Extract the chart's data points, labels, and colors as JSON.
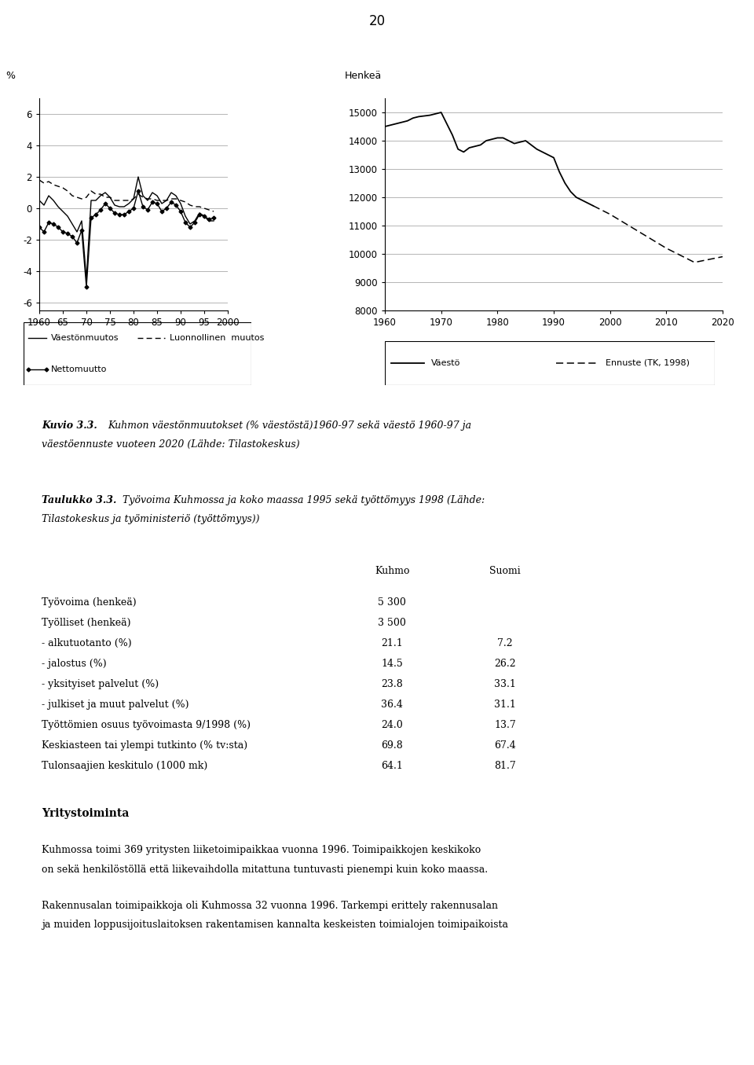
{
  "page_number": "20",
  "left_chart": {
    "ylabel": "%",
    "ylim": [
      -6.5,
      7
    ],
    "yticks": [
      -6,
      -4,
      -2,
      0,
      2,
      4,
      6
    ],
    "xlim": [
      1960,
      2000
    ],
    "xticks": [
      1960,
      1965,
      1970,
      1975,
      1980,
      1985,
      1990,
      1995,
      2000
    ],
    "xticklabels": [
      "1960",
      "65",
      "70",
      "75",
      "80",
      "85",
      "90",
      "95",
      "2000"
    ],
    "vaestonmuutos_x": [
      1960,
      1961,
      1962,
      1963,
      1964,
      1965,
      1966,
      1967,
      1968,
      1969,
      1970,
      1971,
      1972,
      1973,
      1974,
      1975,
      1976,
      1977,
      1978,
      1979,
      1980,
      1981,
      1982,
      1983,
      1984,
      1985,
      1986,
      1987,
      1988,
      1989,
      1990,
      1991,
      1992,
      1993,
      1994,
      1995,
      1996,
      1997
    ],
    "vaestonmuutos_y": [
      0.5,
      0.2,
      0.8,
      0.5,
      0.1,
      -0.2,
      -0.5,
      -1.0,
      -1.5,
      -0.8,
      -4.5,
      0.5,
      0.5,
      0.8,
      1.0,
      0.7,
      0.2,
      0.1,
      0.1,
      0.3,
      0.6,
      2.0,
      0.8,
      0.5,
      1.0,
      0.8,
      0.3,
      0.5,
      1.0,
      0.8,
      0.3,
      -0.5,
      -1.0,
      -0.8,
      -0.3,
      -0.5,
      -0.8,
      -0.8
    ],
    "luonnollinen_x": [
      1960,
      1961,
      1962,
      1963,
      1964,
      1965,
      1966,
      1967,
      1968,
      1969,
      1970,
      1971,
      1972,
      1973,
      1974,
      1975,
      1976,
      1977,
      1978,
      1979,
      1980,
      1981,
      1982,
      1983,
      1984,
      1985,
      1986,
      1987,
      1988,
      1989,
      1990,
      1991,
      1992,
      1993,
      1994,
      1995,
      1996,
      1997
    ],
    "luonnollinen_y": [
      1.8,
      1.6,
      1.7,
      1.5,
      1.4,
      1.3,
      1.1,
      0.8,
      0.7,
      0.6,
      0.7,
      1.1,
      0.9,
      0.9,
      0.7,
      0.7,
      0.5,
      0.5,
      0.5,
      0.5,
      0.6,
      0.9,
      0.7,
      0.6,
      0.6,
      0.5,
      0.5,
      0.5,
      0.6,
      0.6,
      0.5,
      0.4,
      0.2,
      0.1,
      0.1,
      0.0,
      -0.1,
      -0.2
    ],
    "nettomuutto_x": [
      1960,
      1961,
      1962,
      1963,
      1964,
      1965,
      1966,
      1967,
      1968,
      1969,
      1970,
      1971,
      1972,
      1973,
      1974,
      1975,
      1976,
      1977,
      1978,
      1979,
      1980,
      1981,
      1982,
      1983,
      1984,
      1985,
      1986,
      1987,
      1988,
      1989,
      1990,
      1991,
      1992,
      1993,
      1994,
      1995,
      1996,
      1997
    ],
    "nettomuutto_y": [
      -1.2,
      -1.5,
      -0.9,
      -1.0,
      -1.2,
      -1.5,
      -1.6,
      -1.8,
      -2.2,
      -1.4,
      -5.0,
      -0.6,
      -0.4,
      -0.1,
      0.3,
      0.0,
      -0.3,
      -0.4,
      -0.4,
      -0.2,
      0.0,
      1.1,
      0.1,
      -0.1,
      0.4,
      0.3,
      -0.2,
      0.0,
      0.4,
      0.2,
      -0.2,
      -0.9,
      -1.2,
      -0.9,
      -0.4,
      -0.5,
      -0.7,
      -0.6
    ],
    "legend_vaestonmuutos": "Väestönmuutos",
    "legend_luonnollinen": "Luonnollinen  muutos",
    "legend_netto": "Nettomuutto"
  },
  "right_chart": {
    "ylabel": "Henkeä",
    "ylim": [
      8000,
      15500
    ],
    "yticks": [
      8000,
      9000,
      10000,
      11000,
      12000,
      13000,
      14000,
      15000
    ],
    "xlim": [
      1960,
      2020
    ],
    "xticks": [
      1960,
      1970,
      1980,
      1990,
      2000,
      2010,
      2020
    ],
    "vaesto_x": [
      1960,
      1962,
      1964,
      1965,
      1966,
      1968,
      1970,
      1972,
      1973,
      1974,
      1975,
      1976,
      1977,
      1978,
      1979,
      1980,
      1981,
      1982,
      1983,
      1984,
      1985,
      1986,
      1987,
      1988,
      1989,
      1990,
      1991,
      1992,
      1993,
      1994,
      1995,
      1996,
      1997
    ],
    "vaesto_y": [
      14500,
      14600,
      14700,
      14800,
      14850,
      14900,
      15000,
      14200,
      13700,
      13600,
      13750,
      13800,
      13850,
      14000,
      14050,
      14100,
      14100,
      14000,
      13900,
      13950,
      14000,
      13850,
      13700,
      13600,
      13500,
      13400,
      12900,
      12500,
      12200,
      12000,
      11900,
      11800,
      11700
    ],
    "ennuste_x": [
      1997,
      2000,
      2005,
      2010,
      2015,
      2020
    ],
    "ennuste_y": [
      11700,
      11400,
      10800,
      10200,
      9700,
      9900
    ],
    "legend_vaesto": "Väestö",
    "legend_ennuste": "Ennuste (TK, 1998)"
  },
  "caption_bold": "Kuvio 3.3.",
  "caption_rest": " Kuhmon väestönmuutokset (% väestöstä)1960-97 sekä väestö 1960-97 ja väestöennuste vuoteen 2020 (Lähde: Tilastokeskus)",
  "table_title_bold": "Taulukko 3.3.",
  "table_title_rest": " Työvoima Kuhmossa ja koko maassa 1995 sekä työttömyys 1998 (Lähde: Tilastokeskus ja työministeriö (työttömyys))",
  "table_col_kuhmo": "Kuhmo",
  "table_col_suomi": "Suomi",
  "table_rows": [
    {
      "label": "Työvoima (henkeä)",
      "kuhmo": "5 300",
      "suomi": ""
    },
    {
      "label": "Työlliset (henkeä)",
      "kuhmo": "3 500",
      "suomi": ""
    },
    {
      "label": "- alkutuotanto (%)",
      "kuhmo": "21.1",
      "suomi": "7.2"
    },
    {
      "label": "- jalostus (%)",
      "kuhmo": "14.5",
      "suomi": "26.2"
    },
    {
      "label": "- yksityiset palvelut (%)",
      "kuhmo": "23.8",
      "suomi": "33.1"
    },
    {
      "label": "- julkiset ja muut palvelut (%)",
      "kuhmo": "36.4",
      "suomi": "31.1"
    },
    {
      "label": "Työttömien osuus työvoimasta 9/1998 (%)",
      "kuhmo": "24.0",
      "suomi": "13.7"
    },
    {
      "label": "Keskiasteen tai ylempi tutkinto (% tv:sta)",
      "kuhmo": "69.8",
      "suomi": "67.4"
    },
    {
      "label": "Tulonsaajien keskitulo (1000 mk)",
      "kuhmo": "64.1",
      "suomi": "81.7"
    }
  ],
  "section_title": "Yritystoiminta",
  "paragraph1_line1": "Kuhmossa toimi 369 yritysten liiketoimipaikkaa vuonna 1996. Toimipaikkojen keskikoko",
  "paragraph1_line2": "on sekä henkilöstöllä että liikevaihdolla mitattuna tuntuvasti pienempi kuin koko maassa.",
  "paragraph2_line1": "Rakennusalan toimipaikkoja oli Kuhmossa 32 vuonna 1996. Tarkempi erittely rakennusalan",
  "paragraph2_line2": "ja muiden loppusijoituslaitoksen rakentamisen kannalta keskeisten toimialojen toimipaikoista"
}
